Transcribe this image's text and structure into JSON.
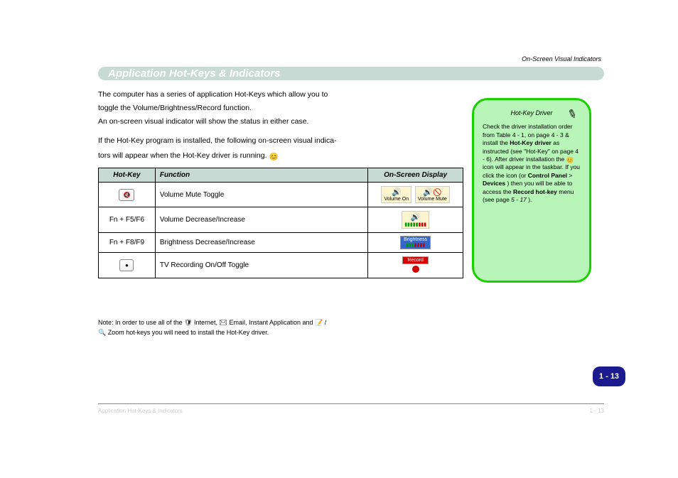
{
  "chapter_label": "On-Screen Visual Indicators",
  "title_bar": "Application Hot-Keys & Indicators",
  "intro": [
    "The computer has a series of application Hot-Keys which allow you to",
    "toggle the Volume/Brightness/Record function.",
    "An on-screen visual indicator will show the status in either case."
  ],
  "subheading": "On-Screen Visual Indicators",
  "desc_line": "If the Hot-Key program is installed, the following on-screen visual indica-",
  "pre_table_line": "tors will appear when the Hot-Key driver is running.",
  "app_icon_label": "😊",
  "table": {
    "columns": [
      "Hot-Key",
      "Function",
      "On-Screen Display"
    ],
    "rows": [
      {
        "key_label": "",
        "key_text": "🔇",
        "func": "Volume Mute Toggle",
        "display": "volume"
      },
      {
        "key_label": "",
        "key_text": "Fn + F5/F6",
        "func": "Volume Decrease/Increase",
        "display": "vol-bar"
      },
      {
        "key_label": "",
        "key_text": "Fn + F8/F9",
        "func": "Brightness Decrease/Increase",
        "display": "brightness"
      },
      {
        "key_label": "",
        "key_text": "●",
        "func": "TV Recording On/Off Toggle",
        "display": "record"
      }
    ]
  },
  "notes_lines": [
    "Note: In order to use all of the 🛡 Internet, ✉ Email, Instant Application and 📝 /",
    "🔍 Zoom hot-keys you will need to install the Hot-Key driver."
  ],
  "note_box": {
    "title": "Hot-Key Driver",
    "body1": "Check the driver installation order from Table 4 - 1, on page 4 - 3 & install the ",
    "hk_bold": "Hot-Key driver",
    "body2": " as instructed (see \"Hot-Key\" on page 4 - 6). ",
    "body3": "After driver installation the ",
    "app_icon": "😊",
    "body4": " icon will appear in the taskbar. If you click the icon (or ",
    "ctrl": "Control Panel",
    "gt": " > ",
    "devices": "Devices",
    "body5": ") then you will be able to access the ",
    "rec_hk": "Record hot-key",
    "body6": " menu (see page ",
    "page_ref": "5 - 17",
    "body7": ")."
  },
  "page_number": "1 - 13",
  "footer_left": "Application Hot-Keys & Indicators",
  "footer_right": "1 - 13"
}
